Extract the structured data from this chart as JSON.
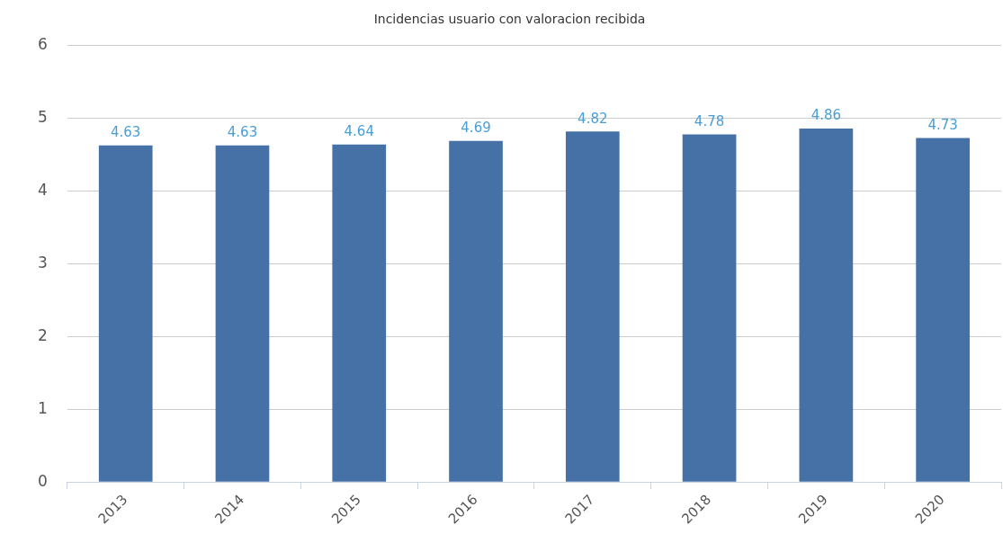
{
  "chart_data": {
    "type": "bar",
    "title": "Incidencias usuario con valoracion recibida",
    "categories": [
      "2013",
      "2014",
      "2015",
      "2016",
      "2017",
      "2018",
      "2019",
      "2020"
    ],
    "values": [
      4.63,
      4.63,
      4.64,
      4.69,
      4.82,
      4.78,
      4.86,
      4.73
    ],
    "color": "#4571a6",
    "ylim": [
      0,
      6
    ],
    "yticks": [
      0,
      1,
      2,
      3,
      4,
      5,
      6
    ],
    "grid": "y",
    "data_labels": true
  }
}
